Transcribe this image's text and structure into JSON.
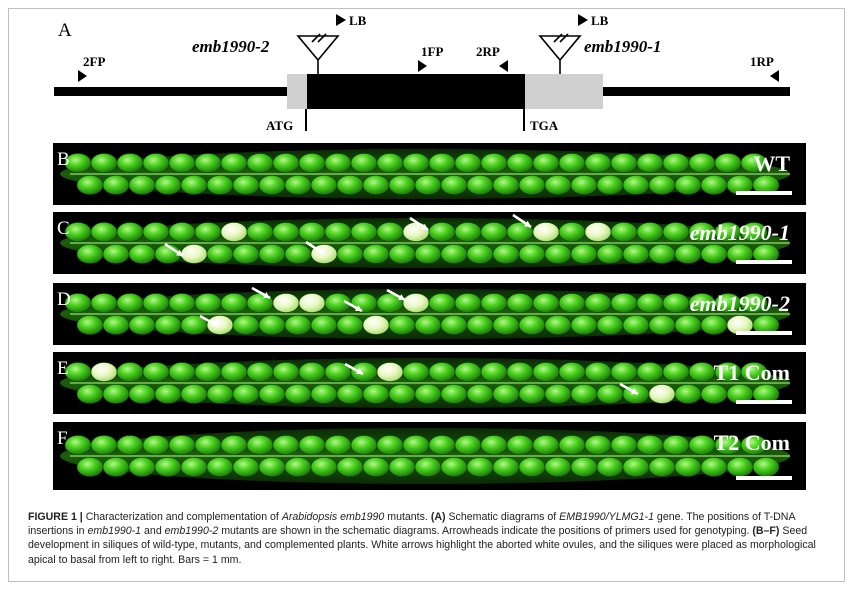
{
  "figure": {
    "panel_a": {
      "letter": "A",
      "mutant_left": "emb1990-2",
      "mutant_right": "emb1990-1",
      "lb_left": "LB",
      "lb_right": "LB",
      "primers": {
        "fp2": "2FP",
        "fp1": "1FP",
        "rp2": "2RP",
        "rp1": "1RP"
      },
      "atg": "ATG",
      "tga": "TGA"
    },
    "panels": [
      {
        "letter": "B",
        "label": "WT",
        "italic": false
      },
      {
        "letter": "C",
        "label": "emb1990-1",
        "italic": true
      },
      {
        "letter": "D",
        "label": "emb1990-2",
        "italic": true
      },
      {
        "letter": "E",
        "label": "T1 Com",
        "italic": false
      },
      {
        "letter": "F",
        "label": "T2 Com",
        "italic": false
      }
    ]
  },
  "caption": {
    "lead": "FIGURE 1 |",
    "p1": " Characterization and complementation of ",
    "i1": "Arabidopsis emb1990",
    "p2": " mutants. ",
    "b1": "(A)",
    "p3": " Schematic diagrams of ",
    "i2": "EMB1990/YLMG1-1",
    "p4": " gene. The positions of T-DNA insertions in ",
    "i3": "emb1990-1",
    "p5": " and ",
    "i4": "emb1990-2",
    "p6": " mutants are shown in the schematic diagrams. Arrowheads indicate the positions of primers used for genotyping. ",
    "b2": "(B–F)",
    "p7": " Seed development in siliques of wild-type, mutants, and complemented plants. White arrows highlight the aborted white ovules, and the siliques were placed as morphological apical to basal from left to right. Bars = 1 mm."
  },
  "colors": {
    "exon": "#000000",
    "utr": "#d0d0d0",
    "panel_bg": "#000000",
    "seed": "#39c01a",
    "seed_light": "#8ee86a",
    "aborted": "#e9f7c6"
  }
}
